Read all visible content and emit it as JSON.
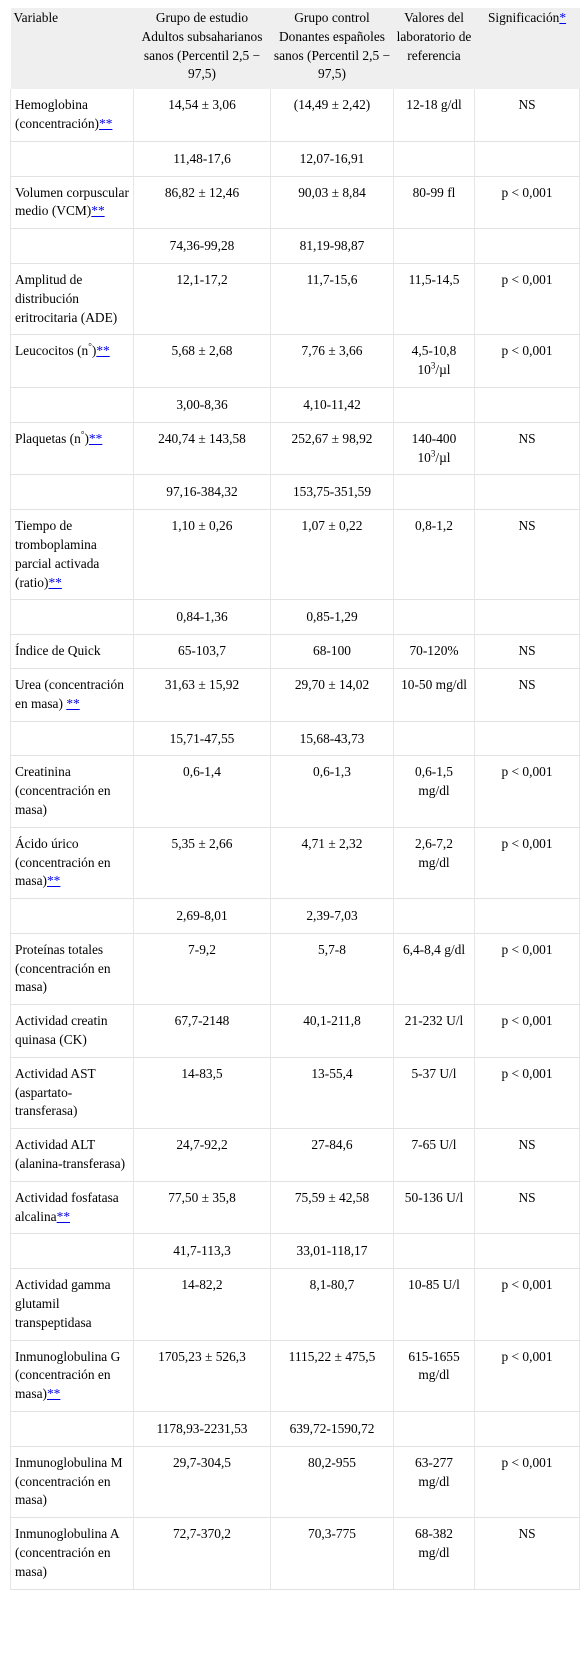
{
  "header": {
    "variable": "Variable",
    "study_group": "Grupo de estudio Adultos subsaharianos sanos (Percentil 2,5 − 97,5)",
    "control_group": "Grupo control Donantes españoles sanos (Percentil 2,5 − 97,5)",
    "reference_values": "Valores del laboratorio de referencia",
    "significance": "Significación",
    "significance_mark": "*"
  },
  "footnote_mark": "**",
  "rows": [
    {
      "variable": "Hemoglobina (concentración)",
      "mark": "**",
      "study": "14,54 ± 3,06",
      "control": "(14,49 ± 2,42)",
      "reference": "12-18 g/dl",
      "sig": "NS"
    },
    {
      "range": true,
      "study": "11,48-17,6",
      "control": "12,07-16,91"
    },
    {
      "variable": "Volumen corpuscular medio (VCM)",
      "mark": "**",
      "study": "86,82 ± 12,46",
      "control": "90,03 ± 8,84",
      "reference": "80-99 fl",
      "sig": "p < 0,001"
    },
    {
      "range": true,
      "study": "74,36-99,28",
      "control": "81,19-98,87"
    },
    {
      "variable": "Amplitud de distribución eritrocitaria (ADE)",
      "study": "12,1-17,2",
      "control": "11,7-15,6",
      "reference": "11,5-14,5",
      "sig": "p < 0,001"
    },
    {
      "variable": "Leucocitos (n",
      "deg": "°",
      "variable_end": ")",
      "mark": "**",
      "study": "5,68 ± 2,68",
      "control": "7,76 ± 3,66",
      "reference": "4,5-10,8",
      "ref_unit": "10",
      "ref_exp": "3",
      "ref_suffix": "/µl",
      "sig": "p < 0,001"
    },
    {
      "range": true,
      "study": "3,00-8,36",
      "control": "4,10-11,42"
    },
    {
      "variable": "Plaquetas (n",
      "deg": "°",
      "variable_end": ")",
      "mark": "**",
      "study": "240,74 ± 143,58",
      "control": "252,67 ± 98,92",
      "reference": "140-400",
      "ref_unit": "10",
      "ref_exp": "3",
      "ref_suffix": "/µl",
      "sig": "NS"
    },
    {
      "range": true,
      "study": "97,16-384,32",
      "control": "153,75-351,59"
    },
    {
      "variable": "Tiempo de tromboplamina parcial activada (ratio)",
      "mark": "**",
      "study": "1,10 ± 0,26",
      "control": "1,07 ± 0,22",
      "reference": "0,8-1,2",
      "sig": "NS"
    },
    {
      "range": true,
      "study": "0,84-1,36",
      "control": "0,85-1,29"
    },
    {
      "variable": "Índice de Quick",
      "study": "65-103,7",
      "control": "68-100",
      "reference": "70-120%",
      "sig": "NS"
    },
    {
      "variable": "Urea (concentración en masa) ",
      "mark": "**",
      "study": "31,63 ± 15,92",
      "control": "29,70 ± 14,02",
      "reference": "10-50 mg/dl",
      "sig": "NS"
    },
    {
      "range": true,
      "study": "15,71-47,55",
      "control": "15,68-43,73"
    },
    {
      "variable": "Creatinina (concentración en masa)",
      "study": "0,6-1,4",
      "control": "0,6-1,3",
      "reference": "0,6-1,5 mg/dl",
      "sig": "p < 0,001"
    },
    {
      "variable": "Ácido úrico (concentración en masa)",
      "mark": "**",
      "study": "5,35 ± 2,66",
      "control": "4,71 ± 2,32",
      "reference": "2,6-7,2 mg/dl",
      "sig": "p < 0,001"
    },
    {
      "range": true,
      "study": "2,69-8,01",
      "control": "2,39-7,03"
    },
    {
      "variable": "Proteínas totales (concentración en masa)",
      "study": "7-9,2",
      "control": "5,7-8",
      "reference": "6,4-8,4 g/dl",
      "sig": "p < 0,001"
    },
    {
      "variable": "Actividad creatin quinasa (CK)",
      "study": "67,7-2148",
      "control": "40,1-211,8",
      "reference": "21-232 U/l",
      "sig": "p < 0,001"
    },
    {
      "variable": "Actividad AST (aspartato-transferasa)",
      "study": "14-83,5",
      "control": "13-55,4",
      "reference": "5-37 U/l",
      "sig": "p < 0,001"
    },
    {
      "variable": "Actividad ALT (alanina-transferasa)",
      "study": "24,7-92,2",
      "control": "27-84,6",
      "reference": "7-65 U/l",
      "sig": "NS"
    },
    {
      "variable": "Actividad fosfatasa alcalina",
      "mark": "**",
      "study": "77,50 ± 35,8",
      "control": "75,59 ± 42,58",
      "reference": "50-136 U/l",
      "sig": "NS"
    },
    {
      "range": true,
      "study": "41,7-113,3",
      "control": "33,01-118,17"
    },
    {
      "variable": "Actividad gamma glutamil transpeptidasa",
      "study": "14-82,2",
      "control": "8,1-80,7",
      "reference": "10-85 U/l",
      "sig": "p < 0,001"
    },
    {
      "variable": "Inmunoglobulina G (concentración en masa)",
      "mark": "**",
      "study": "1705,23 ± 526,3",
      "control": "1115,22 ± 475,5",
      "reference": "615-1655 mg/dl",
      "sig": "p < 0,001"
    },
    {
      "range": true,
      "study": "1178,93-2231,53",
      "control": "639,72-1590,72"
    },
    {
      "variable": "Inmunoglobulina M (concentración en masa)",
      "study": "29,7-304,5",
      "control": "80,2-955",
      "reference": "63-277 mg/dl",
      "sig": "p < 0,001"
    },
    {
      "variable": "Inmunoglobulina A (concentración en masa)",
      "study": "72,7-370,2",
      "control": "70,3-775",
      "reference": "68-382 mg/dl",
      "sig": "NS"
    }
  ]
}
